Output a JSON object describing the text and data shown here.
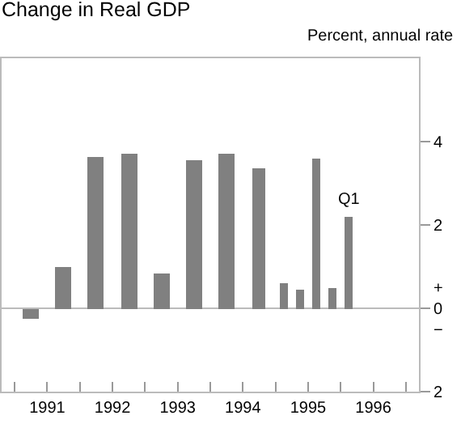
{
  "chart_data": {
    "type": "bar",
    "title": "Change in Real GDP",
    "subtitle": "Percent, annual rate",
    "x": [
      1991.25,
      1991.75,
      1992.25,
      1992.75,
      1993.25,
      1993.75,
      1994.25,
      1994.75,
      1995.125,
      1995.375,
      1995.625,
      1995.875,
      1996.125
    ],
    "values": [
      -0.25,
      1.0,
      3.65,
      3.7,
      0.85,
      3.55,
      3.7,
      3.35,
      0.6,
      0.45,
      3.6,
      0.5,
      2.2
    ],
    "color": "#808080",
    "annotations": [
      {
        "text": "Q1",
        "x": 1996.125,
        "y": 2.2
      }
    ],
    "xlim": [
      1990.8,
      1997.2
    ],
    "xticks": [
      {
        "value": 1991,
        "label": null
      },
      {
        "value": 1991.5,
        "label": "1991"
      },
      {
        "value": 1992,
        "label": null
      },
      {
        "value": 1992.5,
        "label": "1992"
      },
      {
        "value": 1993,
        "label": null
      },
      {
        "value": 1993.5,
        "label": "1993"
      },
      {
        "value": 1994,
        "label": null
      },
      {
        "value": 1994.5,
        "label": "1994"
      },
      {
        "value": 1995,
        "label": null
      },
      {
        "value": 1995.5,
        "label": "1995"
      },
      {
        "value": 1996,
        "label": null
      },
      {
        "value": 1996.5,
        "label": "1996"
      },
      {
        "value": 1997,
        "label": null
      }
    ],
    "ylim": [
      -2,
      6
    ],
    "yticks": [
      {
        "value": -2,
        "label": "2"
      },
      {
        "value": 0,
        "label": "+\n0\n−"
      },
      2,
      4
    ],
    "ref_lines": [
      {
        "axis": "y",
        "value": 0,
        "color": "#bbbbbb"
      }
    ],
    "grid": false,
    "legend": false
  }
}
